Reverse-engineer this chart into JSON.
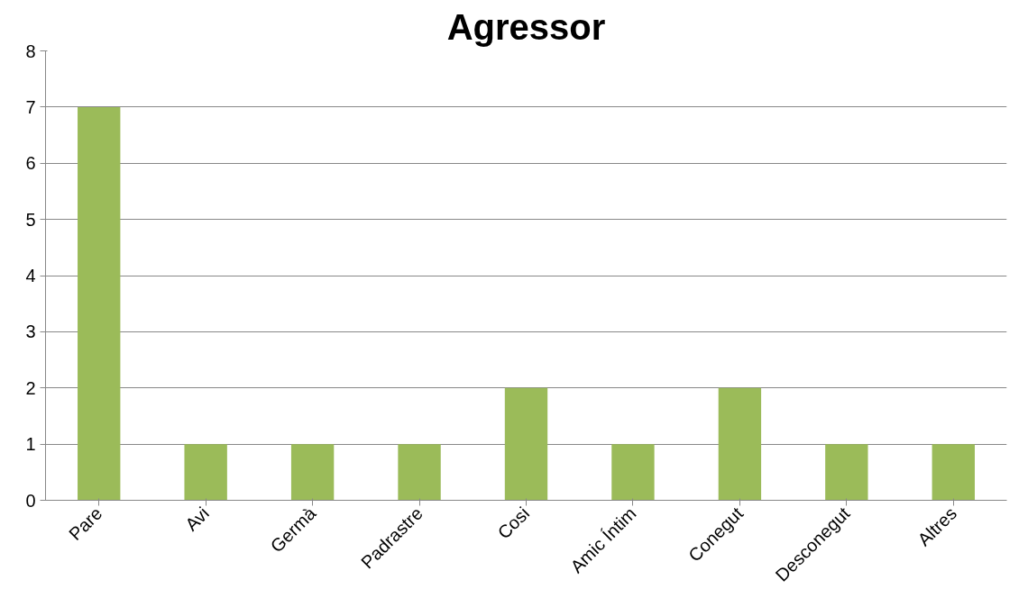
{
  "chart_data": {
    "type": "bar",
    "title": "Agressor",
    "categories": [
      "Pare",
      "Avi",
      "Germà",
      "Padrastre",
      "Cosi",
      "Amic Íntim",
      "Conegut",
      "Desconegut",
      "Altres"
    ],
    "values": [
      7,
      1,
      1,
      1,
      2,
      1,
      2,
      1,
      1
    ],
    "color": "#9bbb59",
    "ylim": [
      0,
      8
    ],
    "yticks": [
      0,
      1,
      2,
      3,
      4,
      5,
      6,
      7,
      8
    ],
    "grid": "y"
  }
}
